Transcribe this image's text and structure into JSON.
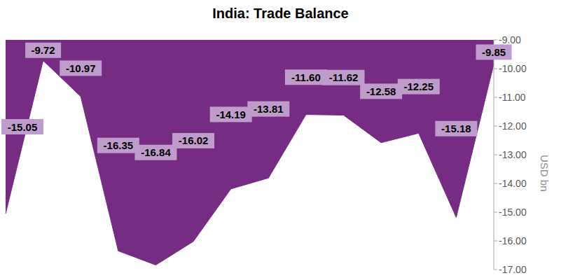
{
  "chart_data": {
    "type": "area",
    "title": "India: Trade Balance",
    "y_label": "USD bn",
    "categories": [
      null,
      null,
      null,
      null,
      null,
      null,
      null,
      null,
      null,
      null,
      null,
      null,
      null,
      null
    ],
    "values": [
      -15.05,
      -9.72,
      -10.97,
      -16.35,
      -16.84,
      -16.02,
      -14.19,
      -13.81,
      -11.6,
      -11.62,
      -12.58,
      -12.25,
      -15.18,
      -9.85
    ],
    "value_labels": [
      "-15.05",
      "-9.72",
      "-10.97",
      "-16.35",
      "-16.84",
      "-16.02",
      "-14.19",
      "-13.81",
      "-11.60",
      "-11.62",
      "-12.58",
      "-12.25",
      "-15.18",
      "-9.85"
    ],
    "color": "#772c83",
    "ylim": [
      -17,
      -9
    ],
    "yticks": [
      {
        "value": -9,
        "label": "-9.00"
      },
      {
        "value": -10,
        "label": "-10.00"
      },
      {
        "value": -11,
        "label": "-11.00"
      },
      {
        "value": -12,
        "label": "-12.00"
      },
      {
        "value": -13,
        "label": "-13.00"
      },
      {
        "value": -14,
        "label": "-14.00"
      },
      {
        "value": -15,
        "label": "-15.00"
      },
      {
        "value": -16,
        "label": "-16.00"
      },
      {
        "value": -17,
        "label": "-17.00"
      }
    ],
    "data_labels": true,
    "tick_labels": "y",
    "grid": false
  }
}
